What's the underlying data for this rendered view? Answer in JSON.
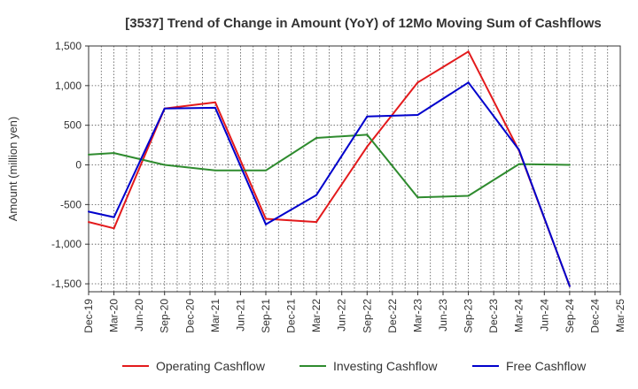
{
  "chart_data": {
    "type": "line",
    "title": "[3537]  Trend of Change in Amount (YoY) of 12Mo Moving Sum of Cashflows",
    "ylabel": "Amount (million yen)",
    "xlabel": "",
    "ylim": [
      -1600,
      1500
    ],
    "yticks": [
      1500,
      1000,
      500,
      0,
      -500,
      -1000,
      -1500
    ],
    "ytick_labels": [
      "1,500",
      "1,000",
      "500",
      "0",
      "-500",
      "-1,000",
      "-1,500"
    ],
    "categories": [
      "Dec-19",
      "Mar-20",
      "Jun-20",
      "Sep-20",
      "Dec-20",
      "Mar-21",
      "Jun-21",
      "Sep-21",
      "Dec-21",
      "Mar-22",
      "Jun-22",
      "Sep-22",
      "Dec-22",
      "Mar-23",
      "Jun-23",
      "Sep-23",
      "Dec-23",
      "Mar-24",
      "Jun-24",
      "Sep-24",
      "Dec-24",
      "Mar-25"
    ],
    "grid": true,
    "legend_position": "bottom",
    "series": [
      {
        "name": "Operating Cashflow",
        "color": "#e31a1c",
        "values": [
          -720,
          -800,
          null,
          710,
          null,
          790,
          null,
          -680,
          null,
          -720,
          null,
          230,
          null,
          1040,
          null,
          1430,
          null,
          180,
          null,
          -1530,
          null,
          null
        ]
      },
      {
        "name": "Investing Cashflow",
        "color": "#2e8b2e",
        "values": [
          130,
          150,
          null,
          0,
          null,
          -70,
          null,
          -70,
          null,
          340,
          null,
          380,
          null,
          -410,
          null,
          -390,
          null,
          10,
          null,
          0,
          null,
          null
        ]
      },
      {
        "name": "Free Cashflow",
        "color": "#0000cc",
        "values": [
          -590,
          -660,
          null,
          710,
          null,
          720,
          null,
          -750,
          null,
          -380,
          null,
          610,
          null,
          630,
          null,
          1040,
          null,
          190,
          null,
          -1530,
          null,
          null
        ]
      }
    ]
  }
}
